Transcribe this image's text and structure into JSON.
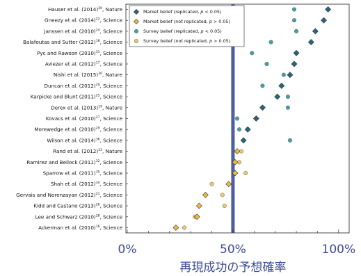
{
  "chart_data": {
    "type": "scatter",
    "xlabel": "再現成功の予想確率",
    "x_ticks": [
      "0%",
      "50%",
      "100%"
    ],
    "xlim": [
      0,
      1.05
    ],
    "reference_line": {
      "x": 0.5,
      "color": "#4f5fa3"
    },
    "colors": {
      "market_replicated": "#2e6475",
      "market_not_replicated": "#f5b73a",
      "survey_replicated": "#4f9ba0",
      "survey_not_replicated": "#f5c46a"
    },
    "legend": [
      {
        "key": "market_replicated",
        "marker": "diamond",
        "parts": [
          "Market belief (replicated, ",
          "p",
          " < 0.05)"
        ]
      },
      {
        "key": "market_not_replicated",
        "marker": "diamond",
        "parts": [
          "Market belief (not replicated, ",
          "p",
          " > 0.05)"
        ]
      },
      {
        "key": "survey_replicated",
        "marker": "circle",
        "parts": [
          "Survey belief (replicated, ",
          "p",
          " < 0.05)"
        ]
      },
      {
        "key": "survey_not_replicated",
        "marker": "circle",
        "parts": [
          "Survey belief (not replicated, ",
          "p",
          " > 0.05)"
        ]
      }
    ],
    "studies": [
      {
        "name": "Hauser et al. (2014)",
        "ref": "20",
        "journal": "Nature",
        "replicated": true,
        "market": 0.95,
        "survey": 0.79
      },
      {
        "name": "Gneezy et al. (2014)",
        "ref": "22",
        "journal": "Science",
        "replicated": true,
        "market": 0.93,
        "survey": 0.79
      },
      {
        "name": "Janssen et al. (2010)",
        "ref": "24",
        "journal": "Science",
        "replicated": true,
        "market": 0.89,
        "survey": 0.8
      },
      {
        "name": "Balafoutas and Sutter (2012)",
        "ref": "18",
        "journal": "Science",
        "replicated": true,
        "market": 0.87,
        "survey": 0.68
      },
      {
        "name": "Pyc and Rawson (2010)",
        "ref": "31",
        "journal": "Science",
        "replicated": true,
        "market": 0.8,
        "survey": 0.59
      },
      {
        "name": "Aviezer et al. (2012)",
        "ref": "17",
        "journal": "Science",
        "replicated": true,
        "market": 0.79,
        "survey": 0.66
      },
      {
        "name": "Nishi et al. (2015)",
        "ref": "30",
        "journal": "Nature",
        "replicated": true,
        "market": 0.77,
        "survey": 0.74
      },
      {
        "name": "Duncan et al. (2012)",
        "ref": "20",
        "journal": "Science",
        "replicated": true,
        "market": 0.73,
        "survey": 0.64
      },
      {
        "name": "Karpicke and Blunt (2011)",
        "ref": "25",
        "journal": "Science",
        "replicated": true,
        "market": 0.71,
        "survey": 0.76
      },
      {
        "name": "Derex et al. (2013)",
        "ref": "19",
        "journal": "Nature",
        "replicated": true,
        "market": 0.64,
        "survey": 0.76
      },
      {
        "name": "Kovacs et al. (2010)",
        "ref": "27",
        "journal": "Science",
        "replicated": true,
        "market": 0.61,
        "survey": 0.52
      },
      {
        "name": "Morewedge et al. (2010)",
        "ref": "29",
        "journal": "Science",
        "replicated": true,
        "market": 0.57,
        "survey": 0.53
      },
      {
        "name": "Wilson et al. (2014)",
        "ref": "36",
        "journal": "Science",
        "replicated": true,
        "market": 0.55,
        "survey": 0.77
      },
      {
        "name": "Rand et al. (2012)",
        "ref": "33",
        "journal": "Nature",
        "replicated": false,
        "market": 0.52,
        "survey": 0.54
      },
      {
        "name": "Ramirez and Beilock (2011)",
        "ref": "32",
        "journal": "Science",
        "replicated": false,
        "market": 0.51,
        "survey": 0.53
      },
      {
        "name": "Sparrow et al. (2011)",
        "ref": "35",
        "journal": "Science",
        "replicated": false,
        "market": 0.51,
        "survey": 0.56
      },
      {
        "name": "Shah et al. (2012)",
        "ref": "34",
        "journal": "Science",
        "replicated": false,
        "market": 0.48,
        "survey": 0.4
      },
      {
        "name": "Gervais and Norenzayan (2012)",
        "ref": "21",
        "journal": "Science",
        "replicated": false,
        "market": 0.37,
        "survey": 0.45
      },
      {
        "name": "Kidd and Castano (2013)",
        "ref": "26",
        "journal": "Science",
        "replicated": false,
        "market": 0.34,
        "survey": 0.46
      },
      {
        "name": "Lee and Schwarz (2010)",
        "ref": "28",
        "journal": "Science",
        "replicated": false,
        "market": 0.33,
        "survey": 0.32
      },
      {
        "name": "Ackerman et al. (2010)",
        "ref": "16",
        "journal": "Science",
        "replicated": false,
        "market": 0.23,
        "survey": 0.27
      }
    ]
  }
}
